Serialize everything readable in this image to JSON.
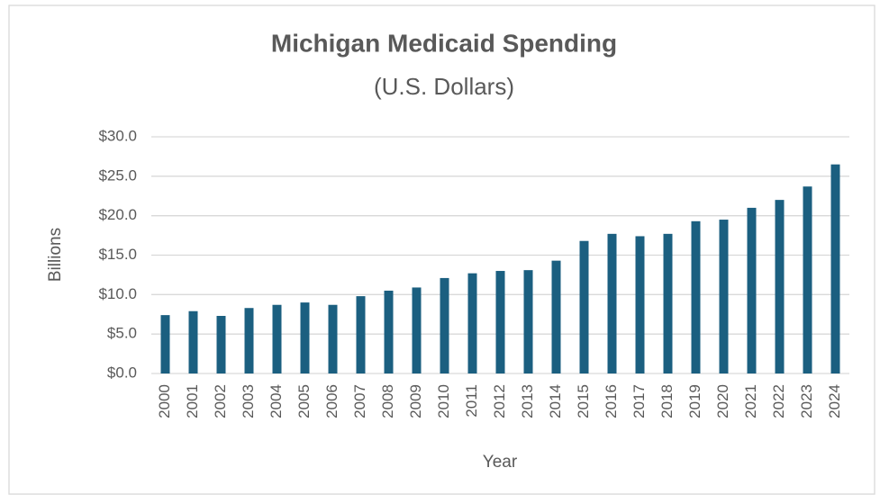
{
  "chart_data": {
    "type": "bar",
    "title": "Michigan Medicaid Spending",
    "subtitle": "(U.S. Dollars)",
    "x_label": "Year",
    "y_label": "Billions",
    "categories": [
      "2000",
      "2001",
      "2002",
      "2003",
      "2004",
      "2005",
      "2006",
      "2007",
      "2008",
      "2009",
      "2010",
      "2011",
      "2012",
      "2013",
      "2014",
      "2015",
      "2016",
      "2017",
      "2018",
      "2019",
      "2020",
      "2021",
      "2022",
      "2023",
      "2024"
    ],
    "values": [
      7.4,
      7.9,
      7.3,
      8.3,
      8.7,
      9.0,
      8.7,
      9.8,
      10.5,
      10.9,
      12.1,
      12.7,
      13.0,
      13.1,
      14.3,
      16.8,
      17.7,
      17.4,
      17.7,
      19.3,
      19.5,
      21.0,
      22.0,
      23.7,
      26.5
    ],
    "color": "#1b5f80",
    "ylim": [
      0,
      30
    ],
    "yticks": [
      {
        "value": 0,
        "label": "$0.0"
      },
      {
        "value": 5,
        "label": "$5.0"
      },
      {
        "value": 10,
        "label": "$10.0"
      },
      {
        "value": 15,
        "label": "$15.0"
      },
      {
        "value": 20,
        "label": "$20.0"
      },
      {
        "value": 25,
        "label": "$25.0"
      },
      {
        "value": 30,
        "label": "$30.0"
      }
    ],
    "grid": true
  }
}
